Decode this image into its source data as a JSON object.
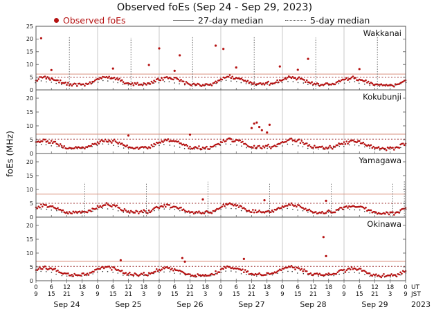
{
  "title": "Observed foEs (Sep 24 - Sep 29, 2023)",
  "legend": {
    "observed_label": "Observed foEs",
    "median27_label": "27-day median",
    "median5_label": "5-day median"
  },
  "y_axis_label": "foEs (MHz)",
  "x_axis": {
    "tick_step_hours": 6,
    "total_hours": 144,
    "ut_tick_labels": [
      "0",
      "6",
      "12",
      "18",
      "0",
      "6",
      "12",
      "18",
      "0",
      "6",
      "12",
      "18",
      "0",
      "6",
      "12",
      "18",
      "0",
      "6",
      "12",
      "18",
      "0",
      "6",
      "12",
      "18",
      "0"
    ],
    "jst_tick_labels": [
      "9",
      "15",
      "21",
      "3",
      "9",
      "15",
      "21",
      "3",
      "9",
      "15",
      "21",
      "3",
      "9",
      "15",
      "21",
      "3",
      "9",
      "15",
      "21",
      "3",
      "9",
      "15",
      "21",
      "3",
      "9"
    ],
    "ut_label": "UT",
    "jst_label": "JST",
    "date_labels": [
      "Sep 24",
      "Sep 25",
      "Sep 26",
      "Sep 27",
      "Sep 28",
      "Sep 29"
    ],
    "year_label": "2023"
  },
  "colors": {
    "observed": "#b51212",
    "median27_line": "#d9917f",
    "median5_line": "#9c3030",
    "black_dots": "#333333",
    "grid": "#b0b0b0",
    "frame": "#555555",
    "spike": "#555555",
    "text": "#111111"
  },
  "chart_data": {
    "type": "scatter",
    "x_unit": "hours since Sep 24 00:00 UT",
    "x_range": [
      0,
      144
    ],
    "ylabel": "foEs (MHz)",
    "panels": [
      {
        "name": "Wakkanai",
        "ylim": [
          0,
          25
        ],
        "yticks": [
          0,
          5,
          10,
          15,
          20,
          25
        ],
        "solid_line_level": 6.2,
        "dotted_line_level": 5.0,
        "observed_t_step": 1,
        "observed": [
          4.1,
          4.5,
          4.8,
          5.0,
          4.7,
          4.4,
          4.6,
          4.2,
          3.8,
          3.3,
          2.8,
          2.5,
          2.3,
          2.1,
          2.0,
          2.2,
          1.9,
          2.1,
          2.4,
          2.0,
          2.3,
          2.7,
          3.2,
          3.7,
          4.3,
          4.7,
          5.0,
          5.2,
          4.9,
          4.6,
          4.8,
          4.4,
          4.0,
          3.5,
          3.0,
          2.7,
          2.5,
          2.3,
          2.2,
          2.4,
          2.1,
          2.3,
          2.6,
          2.2,
          2.5,
          2.9,
          3.4,
          3.9,
          4.0,
          4.4,
          4.7,
          4.9,
          4.6,
          4.3,
          4.5,
          4.1,
          3.7,
          3.2,
          2.7,
          2.4,
          2.2,
          2.0,
          1.9,
          2.1,
          1.8,
          2.0,
          2.3,
          1.9,
          2.2,
          2.6,
          3.1,
          3.6,
          4.4,
          4.8,
          5.1,
          5.3,
          5.0,
          4.7,
          4.9,
          4.5,
          4.1,
          3.6,
          3.1,
          2.8,
          2.6,
          2.4,
          2.3,
          2.5,
          2.2,
          2.4,
          2.7,
          2.3,
          2.6,
          3.0,
          3.5,
          4.0,
          4.2,
          4.6,
          4.9,
          5.1,
          4.8,
          4.5,
          4.7,
          4.3,
          3.9,
          3.4,
          2.9,
          2.6,
          2.4,
          2.2,
          2.1,
          2.3,
          2.0,
          2.2,
          2.5,
          2.1,
          2.4,
          2.8,
          3.3,
          3.8,
          3.9,
          4.3,
          4.6,
          4.8,
          4.5,
          4.2,
          4.4,
          4.0,
          3.6,
          3.1,
          2.6,
          2.3,
          2.1,
          1.9,
          1.8,
          2.0,
          1.7,
          1.9,
          2.2,
          1.8,
          2.1,
          2.5,
          3.0,
          3.5,
          4.0
        ],
        "black_t_step": 2,
        "black_dots": [
          3.0,
          3.4,
          3.3,
          3.0,
          2.6,
          2.1,
          1.8,
          1.7,
          1.7,
          1.9,
          2.1,
          2.6,
          3.1,
          3.5,
          3.4,
          3.1,
          2.7,
          2.2,
          1.9,
          1.8,
          1.8,
          2.0,
          2.2,
          2.7,
          2.9,
          3.3,
          3.2,
          2.9,
          2.5,
          2.0,
          1.7,
          1.6,
          1.6,
          1.8,
          2.0,
          2.5,
          3.2,
          3.6,
          3.5,
          3.2,
          2.8,
          2.3,
          2.0,
          1.9,
          1.9,
          2.1,
          2.3,
          2.8,
          3.0,
          3.4,
          3.3,
          3.0,
          2.6,
          2.1,
          1.8,
          1.7,
          1.7,
          1.9,
          2.1,
          2.6,
          2.8,
          3.2,
          3.1,
          2.8,
          2.4,
          1.9,
          1.6,
          1.5,
          1.5,
          1.7,
          1.9,
          2.4,
          3.0
        ],
        "outliers": [
          [
            2,
            20.3
          ],
          [
            6,
            7.8
          ],
          [
            30,
            8.4
          ],
          [
            44,
            9.8
          ],
          [
            48,
            16.3
          ],
          [
            54,
            7.5
          ],
          [
            56,
            13.6
          ],
          [
            70,
            17.4
          ],
          [
            73,
            16.1
          ],
          [
            78,
            8.8
          ],
          [
            95,
            9.2
          ],
          [
            102,
            7.9
          ],
          [
            106,
            12.2
          ],
          [
            126,
            8.2
          ]
        ],
        "spikes": [
          [
            13,
            21.0
          ],
          [
            37,
            20.4
          ],
          [
            61,
            20.8
          ],
          [
            85,
            21.2
          ],
          [
            109,
            20.5
          ],
          [
            133,
            20.9
          ]
        ]
      },
      {
        "name": "Kokubunji",
        "ylim": [
          0,
          23
        ],
        "yticks": [
          0,
          5,
          10,
          15,
          20
        ],
        "solid_line_level": 7.0,
        "dotted_line_level": 5.2,
        "observed_t_step": 1,
        "observed": [
          3.8,
          4.2,
          4.5,
          4.7,
          4.4,
          4.1,
          4.3,
          3.9,
          3.5,
          3.0,
          2.6,
          2.3,
          2.1,
          2.0,
          1.9,
          2.1,
          1.8,
          2.0,
          2.3,
          1.9,
          2.2,
          2.6,
          3.1,
          3.5,
          4.0,
          4.4,
          4.7,
          4.9,
          4.6,
          4.3,
          4.5,
          4.1,
          3.7,
          3.2,
          2.8,
          2.5,
          2.3,
          2.2,
          2.1,
          2.3,
          2.0,
          2.2,
          2.5,
          2.1,
          2.4,
          2.8,
          3.3,
          3.7,
          3.9,
          4.3,
          4.6,
          4.8,
          4.5,
          4.2,
          4.4,
          4.0,
          3.6,
          3.1,
          2.7,
          2.4,
          2.2,
          2.1,
          2.0,
          2.2,
          1.9,
          2.1,
          2.4,
          2.0,
          2.3,
          2.7,
          3.2,
          3.6,
          4.2,
          4.6,
          4.9,
          5.1,
          4.8,
          4.5,
          4.7,
          4.3,
          3.9,
          3.4,
          3.0,
          2.7,
          2.5,
          2.4,
          2.3,
          2.5,
          2.2,
          2.4,
          2.7,
          2.3,
          2.6,
          3.0,
          3.5,
          3.9,
          4.1,
          4.5,
          4.8,
          5.0,
          4.7,
          4.4,
          4.6,
          4.2,
          3.8,
          3.3,
          2.9,
          2.6,
          2.4,
          2.3,
          2.2,
          2.4,
          2.1,
          2.3,
          2.6,
          2.2,
          2.5,
          2.9,
          3.4,
          3.8,
          3.7,
          4.1,
          4.4,
          4.6,
          4.3,
          4.0,
          4.2,
          3.8,
          3.4,
          2.9,
          2.5,
          2.2,
          2.0,
          1.9,
          1.8,
          2.0,
          1.7,
          1.9,
          2.2,
          1.8,
          2.1,
          2.5,
          3.0,
          3.4,
          3.9
        ],
        "black_t_step": 2,
        "black_dots": [
          2.9,
          3.3,
          3.2,
          2.9,
          2.5,
          2.0,
          1.7,
          1.6,
          1.6,
          1.8,
          2.0,
          2.5,
          3.0,
          3.4,
          3.3,
          3.0,
          2.6,
          2.1,
          1.8,
          1.7,
          1.7,
          1.9,
          2.1,
          2.6,
          2.8,
          3.2,
          3.1,
          2.8,
          2.4,
          1.9,
          1.6,
          1.5,
          1.5,
          1.7,
          1.9,
          2.4,
          3.1,
          3.5,
          3.4,
          3.1,
          2.7,
          2.2,
          1.9,
          1.8,
          1.8,
          2.0,
          2.2,
          2.7,
          2.9,
          3.3,
          3.2,
          2.9,
          2.5,
          2.0,
          1.7,
          1.6,
          1.6,
          1.8,
          2.0,
          2.5,
          2.7,
          3.1,
          3.0,
          2.7,
          2.3,
          1.8,
          1.5,
          1.4,
          1.4,
          1.6,
          1.8,
          2.3,
          2.9
        ],
        "outliers": [
          [
            36,
            6.5
          ],
          [
            60,
            6.8
          ],
          [
            84,
            9.2
          ],
          [
            85,
            10.8
          ],
          [
            86,
            11.2
          ],
          [
            87,
            9.6
          ],
          [
            88,
            8.4
          ],
          [
            90,
            7.6
          ],
          [
            91,
            10.4
          ]
        ],
        "spikes": []
      },
      {
        "name": "Yamagawa",
        "ylim": [
          0,
          23
        ],
        "yticks": [
          0,
          5,
          10,
          15,
          20
        ],
        "solid_line_level": 8.3,
        "dotted_line_level": 5.0,
        "observed_t_step": 1,
        "observed": [
          3.5,
          3.9,
          4.2,
          4.4,
          4.1,
          3.8,
          4.0,
          3.6,
          3.2,
          2.7,
          2.3,
          2.0,
          1.8,
          1.7,
          1.6,
          1.8,
          1.5,
          1.7,
          2.0,
          1.6,
          1.9,
          2.3,
          2.8,
          3.2,
          3.7,
          4.1,
          4.4,
          4.6,
          4.3,
          4.0,
          4.2,
          3.8,
          3.4,
          2.9,
          2.5,
          2.2,
          2.0,
          1.9,
          1.8,
          2.0,
          1.7,
          1.9,
          2.2,
          1.8,
          2.1,
          2.5,
          3.0,
          3.4,
          3.4,
          3.8,
          4.1,
          4.3,
          4.0,
          3.7,
          3.9,
          3.5,
          3.1,
          2.6,
          2.2,
          1.9,
          1.7,
          1.6,
          1.5,
          1.7,
          1.4,
          1.6,
          1.9,
          1.5,
          1.8,
          2.2,
          2.7,
          3.1,
          3.8,
          4.2,
          4.5,
          4.7,
          4.4,
          4.1,
          4.3,
          3.9,
          3.5,
          3.0,
          2.6,
          2.3,
          2.1,
          2.0,
          1.9,
          2.1,
          1.8,
          2.0,
          2.3,
          1.9,
          2.2,
          2.6,
          3.1,
          3.5,
          3.6,
          4.0,
          4.3,
          4.5,
          4.2,
          3.9,
          4.1,
          3.7,
          3.3,
          2.8,
          2.4,
          2.1,
          1.9,
          1.8,
          1.7,
          1.9,
          1.6,
          1.8,
          2.1,
          1.7,
          2.0,
          2.4,
          2.9,
          3.3,
          3.3,
          3.7,
          4.0,
          4.2,
          3.9,
          3.6,
          3.8,
          3.4,
          3.0,
          2.5,
          2.1,
          1.8,
          1.6,
          1.5,
          1.4,
          1.6,
          1.3,
          1.5,
          1.8,
          1.4,
          1.7,
          2.1,
          2.6,
          3.0,
          3.6
        ],
        "black_t_step": 2,
        "black_dots": [
          2.7,
          3.1,
          3.0,
          2.7,
          2.3,
          1.8,
          1.5,
          1.4,
          1.4,
          1.6,
          1.8,
          2.3,
          2.8,
          3.2,
          3.1,
          2.8,
          2.4,
          1.9,
          1.6,
          1.5,
          1.5,
          1.7,
          1.9,
          2.4,
          2.6,
          3.0,
          2.9,
          2.6,
          2.2,
          1.7,
          1.4,
          1.3,
          1.3,
          1.5,
          1.7,
          2.2,
          2.9,
          3.3,
          3.2,
          2.9,
          2.5,
          2.0,
          1.7,
          1.6,
          1.6,
          1.8,
          2.0,
          2.5,
          2.7,
          3.1,
          3.0,
          2.7,
          2.3,
          1.8,
          1.5,
          1.4,
          1.4,
          1.6,
          1.8,
          2.3,
          2.5,
          2.9,
          2.8,
          2.5,
          2.1,
          1.6,
          1.3,
          1.2,
          1.2,
          1.4,
          1.6,
          2.1,
          2.7
        ],
        "outliers": [
          [
            65,
            6.4
          ],
          [
            89,
            6.1
          ],
          [
            113,
            5.9
          ]
        ],
        "spikes": [
          [
            19,
            12.6
          ],
          [
            43,
            12.2
          ],
          [
            67,
            12.8
          ],
          [
            91,
            12.4
          ],
          [
            115,
            12.1
          ],
          [
            139,
            12.5
          ],
          [
            143.5,
            12.9
          ]
        ]
      },
      {
        "name": "Okinawa",
        "ylim": [
          0,
          23
        ],
        "yticks": [
          0,
          5,
          10,
          15,
          20
        ],
        "solid_line_level": 7.0,
        "dotted_line_level": 5.2,
        "observed_t_step": 1,
        "observed": [
          3.9,
          4.3,
          4.6,
          4.8,
          4.5,
          4.2,
          4.4,
          4.0,
          3.6,
          3.1,
          2.7,
          2.4,
          2.2,
          2.1,
          2.0,
          2.2,
          1.9,
          2.1,
          2.4,
          2.0,
          2.3,
          2.7,
          3.2,
          3.6,
          4.1,
          4.5,
          4.8,
          5.0,
          4.7,
          4.4,
          4.6,
          4.2,
          3.8,
          3.3,
          2.9,
          2.6,
          2.4,
          2.3,
          2.2,
          2.4,
          2.1,
          2.3,
          2.6,
          2.2,
          2.5,
          2.9,
          3.4,
          3.8,
          3.8,
          4.2,
          4.5,
          4.7,
          4.4,
          4.1,
          4.3,
          3.9,
          3.5,
          3.0,
          2.6,
          2.3,
          2.1,
          2.0,
          1.9,
          2.1,
          1.8,
          2.0,
          2.3,
          1.9,
          2.2,
          2.6,
          3.1,
          3.5,
          4.2,
          4.6,
          4.9,
          5.1,
          4.8,
          4.5,
          4.7,
          4.3,
          3.9,
          3.4,
          3.0,
          2.7,
          2.5,
          2.4,
          2.3,
          2.5,
          2.2,
          2.4,
          2.7,
          2.3,
          2.6,
          3.0,
          3.5,
          3.9,
          4.0,
          4.4,
          4.7,
          4.9,
          4.6,
          4.3,
          4.5,
          4.1,
          3.7,
          3.2,
          2.8,
          2.5,
          2.3,
          2.2,
          2.1,
          2.3,
          2.0,
          2.2,
          2.5,
          2.1,
          2.4,
          2.8,
          3.3,
          3.7,
          3.6,
          4.0,
          4.3,
          4.5,
          4.2,
          3.9,
          4.1,
          3.7,
          3.3,
          2.8,
          2.4,
          2.1,
          1.9,
          1.8,
          1.7,
          1.9,
          1.6,
          1.8,
          2.1,
          1.7,
          2.0,
          2.4,
          2.9,
          3.3,
          3.8
        ],
        "black_t_step": 2,
        "black_dots": [
          2.9,
          3.3,
          3.2,
          2.9,
          2.5,
          2.0,
          1.7,
          1.6,
          1.6,
          1.8,
          2.0,
          2.5,
          3.0,
          3.4,
          3.3,
          3.0,
          2.6,
          2.1,
          1.8,
          1.7,
          1.7,
          1.9,
          2.1,
          2.6,
          2.8,
          3.2,
          3.1,
          2.8,
          2.4,
          1.9,
          1.6,
          1.5,
          1.5,
          1.7,
          1.9,
          2.4,
          3.1,
          3.5,
          3.4,
          3.1,
          2.7,
          2.2,
          1.9,
          1.8,
          1.8,
          2.0,
          2.2,
          2.7,
          2.9,
          3.3,
          3.2,
          2.9,
          2.5,
          2.0,
          1.7,
          1.6,
          1.6,
          1.8,
          2.0,
          2.5,
          2.6,
          3.0,
          2.9,
          2.6,
          2.2,
          1.7,
          1.4,
          1.3,
          1.3,
          1.5,
          1.7,
          2.2,
          2.8
        ],
        "outliers": [
          [
            33,
            7.4
          ],
          [
            57,
            8.2
          ],
          [
            58,
            6.9
          ],
          [
            81,
            7.9
          ],
          [
            112,
            15.8
          ],
          [
            113,
            8.9
          ]
        ],
        "spikes": []
      }
    ]
  }
}
